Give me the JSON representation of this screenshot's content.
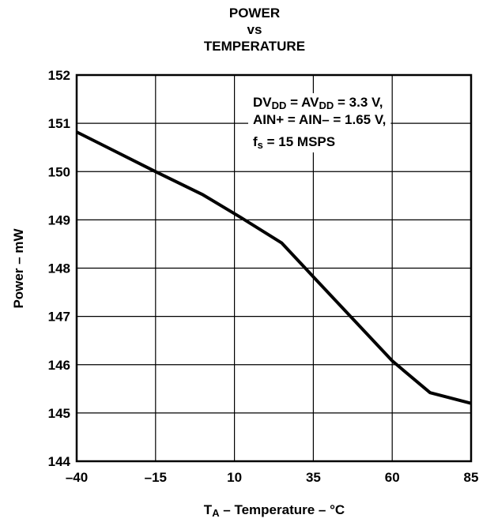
{
  "chart_data": {
    "type": "line",
    "title_lines": [
      "POWER",
      "vs",
      "TEMPERATURE"
    ],
    "xlabel": {
      "main": "T",
      "sub": "A",
      "rest": " – Temperature – °C"
    },
    "ylabel": "Power – mW",
    "xlim": [
      -40,
      85
    ],
    "ylim": [
      144,
      152
    ],
    "x_ticks": [
      "–40",
      "–15",
      "10",
      "35",
      "60",
      "85"
    ],
    "y_ticks": [
      "144",
      "145",
      "146",
      "147",
      "148",
      "149",
      "150",
      "151",
      "152"
    ],
    "grid": true,
    "annotation": {
      "line1": [
        {
          "t": "DV",
          "sub": false
        },
        {
          "t": "DD",
          "sub": true
        },
        {
          "t": " = AV",
          "sub": false
        },
        {
          "t": "DD",
          "sub": true
        },
        {
          "t": " = 3.3 V,",
          "sub": false
        }
      ],
      "line2": [
        {
          "t": "AIN+ = AIN– = 1.65 V,",
          "sub": false
        }
      ],
      "line3": [
        {
          "t": "f",
          "sub": false
        },
        {
          "t": "s",
          "sub": true
        },
        {
          "t": " = 15 MSPS",
          "sub": false
        }
      ]
    },
    "series": [
      {
        "x": [
          -40,
          -15,
          0,
          12,
          25,
          35,
          60,
          72,
          85
        ],
        "y": [
          150.82,
          150.0,
          149.52,
          149.05,
          148.52,
          147.82,
          146.08,
          145.42,
          145.2
        ]
      }
    ]
  }
}
